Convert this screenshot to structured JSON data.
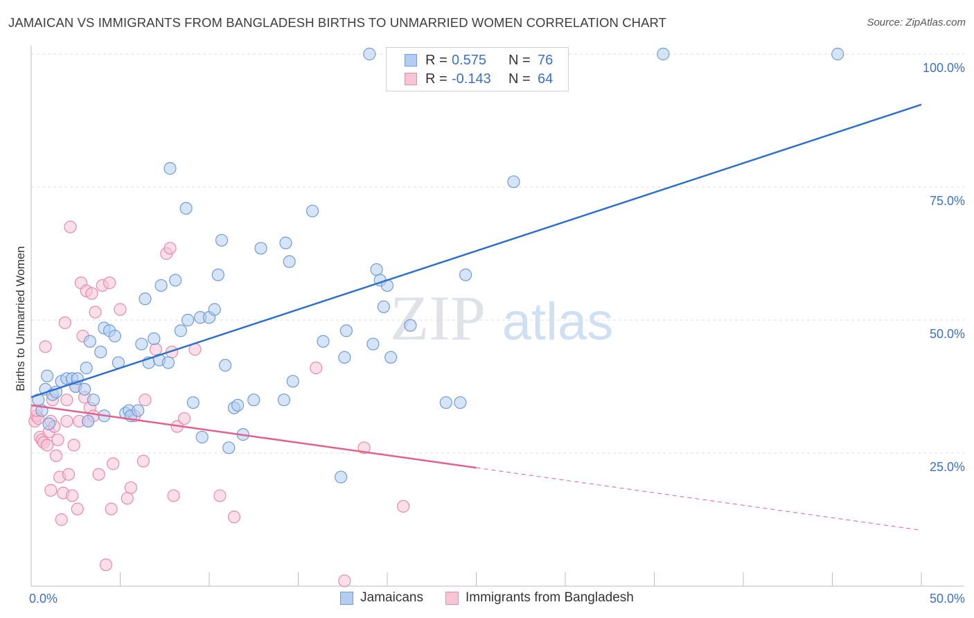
{
  "header": {
    "title": "JAMAICAN VS IMMIGRANTS FROM BANGLADESH BIRTHS TO UNMARRIED WOMEN CORRELATION CHART",
    "source": "Source: ZipAtlas.com"
  },
  "legend": {
    "rows": [
      {
        "r_label": "R =",
        "r_value": "0.575",
        "n_label": "N =",
        "n_value": "76",
        "fill": "#b3cdf0",
        "stroke": "#6f9bd8"
      },
      {
        "r_label": "R =",
        "r_value": "-0.143",
        "n_label": "N =",
        "n_value": "64",
        "fill": "#f8c5d5",
        "stroke": "#e88aa8"
      }
    ]
  },
  "bottom_legend": [
    {
      "label": "Jamaicans",
      "fill": "#b3cdf0",
      "stroke": "#6f9bd8"
    },
    {
      "label": "Immigrants from Bangladesh",
      "fill": "#f8c5d5",
      "stroke": "#e88aa8"
    }
  ],
  "watermark": {
    "zip": "ZIP",
    "atlas": "atlas"
  },
  "chart_data": {
    "type": "scatter",
    "title": "JAMAICAN VS IMMIGRANTS FROM BANGLADESH BIRTHS TO UNMARRIED WOMEN CORRELATION CHART",
    "ylabel": "Births to Unmarried Women",
    "xlim": [
      0,
      50
    ],
    "ylim": [
      0,
      100
    ],
    "x_tick_labels": {
      "left": "0.0%",
      "right": "50.0%"
    },
    "y_ticks": [
      {
        "value": 100,
        "label": "100.0%"
      },
      {
        "value": 75,
        "label": "75.0%"
      },
      {
        "value": 50,
        "label": "50.0%"
      },
      {
        "value": 25,
        "label": "25.0%"
      }
    ],
    "grid": true,
    "series": [
      {
        "name": "Jamaicans",
        "color": "#6f9bd8",
        "fill": "#b3cdf0",
        "line_color": "#2f6fcc",
        "trend": {
          "x0": 0,
          "y0": 35.5,
          "x1": 50,
          "y1": 90.5,
          "dashed_from": null
        },
        "points": [
          [
            0.4,
            35
          ],
          [
            0.8,
            37
          ],
          [
            0.9,
            39.5
          ],
          [
            1.2,
            36
          ],
          [
            1.4,
            36.5
          ],
          [
            1.7,
            38.5
          ],
          [
            2.0,
            39
          ],
          [
            2.3,
            39
          ],
          [
            2.5,
            37.5
          ],
          [
            3.1,
            41
          ],
          [
            3.2,
            31
          ],
          [
            3.3,
            46
          ],
          [
            3.5,
            35
          ],
          [
            3.9,
            44
          ],
          [
            4.1,
            32
          ],
          [
            4.1,
            48.5
          ],
          [
            4.4,
            48
          ],
          [
            4.7,
            47
          ],
          [
            4.9,
            42
          ],
          [
            5.3,
            32.5
          ],
          [
            5.5,
            33
          ],
          [
            5.6,
            32
          ],
          [
            6.0,
            33
          ],
          [
            6.2,
            45.5
          ],
          [
            6.4,
            54
          ],
          [
            6.6,
            42
          ],
          [
            6.9,
            46.5
          ],
          [
            7.2,
            42.5
          ],
          [
            7.3,
            56.5
          ],
          [
            7.7,
            42
          ],
          [
            7.8,
            78.5
          ],
          [
            8.1,
            57.5
          ],
          [
            8.4,
            48
          ],
          [
            8.7,
            71
          ],
          [
            8.8,
            50
          ],
          [
            9.1,
            34.5
          ],
          [
            9.5,
            50.5
          ],
          [
            9.6,
            28
          ],
          [
            10.0,
            50.5
          ],
          [
            10.3,
            52
          ],
          [
            10.5,
            58.5
          ],
          [
            10.7,
            65
          ],
          [
            10.9,
            41.5
          ],
          [
            11.1,
            26
          ],
          [
            11.4,
            33.5
          ],
          [
            11.6,
            34
          ],
          [
            11.9,
            28.5
          ],
          [
            12.5,
            35
          ],
          [
            12.9,
            63.5
          ],
          [
            14.2,
            35
          ],
          [
            14.3,
            64.5
          ],
          [
            14.5,
            61
          ],
          [
            14.7,
            38.5
          ],
          [
            15.8,
            70.5
          ],
          [
            16.4,
            46
          ],
          [
            17.4,
            20.5
          ],
          [
            17.6,
            43
          ],
          [
            17.7,
            48
          ],
          [
            19.0,
            100
          ],
          [
            19.2,
            45.5
          ],
          [
            19.4,
            59.5
          ],
          [
            19.6,
            57.5
          ],
          [
            19.8,
            52.5
          ],
          [
            20.0,
            56.5
          ],
          [
            20.2,
            43
          ],
          [
            21.3,
            49
          ],
          [
            23.3,
            34.5
          ],
          [
            24.1,
            34.5
          ],
          [
            24.4,
            58.5
          ],
          [
            27.1,
            76
          ],
          [
            35.5,
            100
          ],
          [
            45.3,
            100
          ],
          [
            1.0,
            30.5
          ],
          [
            0.6,
            33
          ],
          [
            2.6,
            39
          ],
          [
            3.0,
            37
          ]
        ]
      },
      {
        "name": "Immigrants from Bangladesh",
        "color": "#e88aa8",
        "fill": "#f8c5d5",
        "line_color": "#e3608a",
        "trend": {
          "x0": 0,
          "y0": 34,
          "x1": 50,
          "y1": 10.5,
          "dashed_from": 25
        },
        "points": [
          [
            0.2,
            31
          ],
          [
            0.3,
            32
          ],
          [
            0.4,
            31.5
          ],
          [
            0.5,
            28
          ],
          [
            0.6,
            27.5
          ],
          [
            0.7,
            27
          ],
          [
            0.8,
            45
          ],
          [
            0.9,
            26.5
          ],
          [
            1.0,
            29
          ],
          [
            1.1,
            31
          ],
          [
            1.1,
            18
          ],
          [
            1.2,
            35
          ],
          [
            1.3,
            30
          ],
          [
            1.4,
            24.5
          ],
          [
            1.5,
            27.5
          ],
          [
            1.6,
            20.5
          ],
          [
            1.7,
            12.5
          ],
          [
            1.8,
            17.5
          ],
          [
            1.9,
            49.5
          ],
          [
            2.0,
            35
          ],
          [
            2.0,
            31
          ],
          [
            2.1,
            21
          ],
          [
            2.2,
            67.5
          ],
          [
            2.3,
            17
          ],
          [
            2.4,
            26.5
          ],
          [
            2.5,
            37.5
          ],
          [
            2.6,
            14.5
          ],
          [
            2.7,
            31
          ],
          [
            2.8,
            57
          ],
          [
            2.9,
            47
          ],
          [
            3.0,
            35.5
          ],
          [
            3.1,
            55.5
          ],
          [
            3.2,
            31
          ],
          [
            3.3,
            33.5
          ],
          [
            3.4,
            55
          ],
          [
            3.5,
            32
          ],
          [
            3.6,
            51.5
          ],
          [
            3.8,
            21
          ],
          [
            4.0,
            56.5
          ],
          [
            4.2,
            4
          ],
          [
            4.4,
            57
          ],
          [
            4.5,
            14.5
          ],
          [
            4.6,
            23
          ],
          [
            5.0,
            52
          ],
          [
            5.4,
            16.5
          ],
          [
            5.6,
            18.5
          ],
          [
            5.8,
            32
          ],
          [
            6.3,
            23.5
          ],
          [
            6.4,
            35
          ],
          [
            7.0,
            44.5
          ],
          [
            7.6,
            62.5
          ],
          [
            7.8,
            63.5
          ],
          [
            7.9,
            44
          ],
          [
            8.0,
            17
          ],
          [
            8.2,
            30
          ],
          [
            8.6,
            31.5
          ],
          [
            9.2,
            44.5
          ],
          [
            10.6,
            17
          ],
          [
            11.4,
            13
          ],
          [
            16.0,
            41
          ],
          [
            17.6,
            1
          ],
          [
            18.7,
            26
          ],
          [
            20.9,
            15
          ],
          [
            0.3,
            33
          ]
        ]
      }
    ]
  }
}
